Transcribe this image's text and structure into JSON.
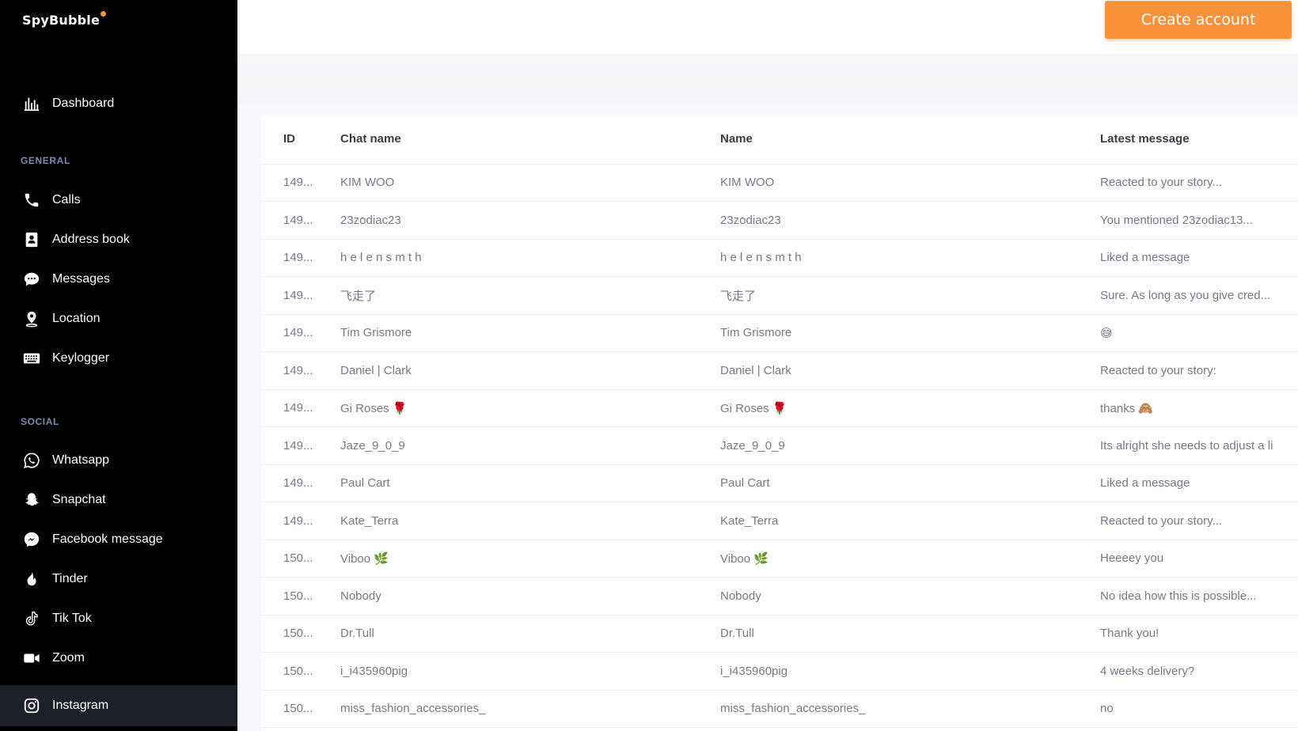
{
  "brand": {
    "name": "SpyBubble",
    "accent": "#f7923a"
  },
  "sidebar": {
    "dashboard": {
      "label": "Dashboard",
      "icon": "bar-chart-icon"
    },
    "general_label": "GENERAL",
    "general": [
      {
        "label": "Calls",
        "icon": "phone-icon"
      },
      {
        "label": "Address book",
        "icon": "address-book-icon"
      },
      {
        "label": "Messages",
        "icon": "message-bubble-icon"
      },
      {
        "label": "Location",
        "icon": "location-pin-icon"
      },
      {
        "label": "Keylogger",
        "icon": "keyboard-icon"
      }
    ],
    "social_label": "SOCIAL",
    "social": [
      {
        "label": "Whatsapp",
        "icon": "whatsapp-icon"
      },
      {
        "label": "Snapchat",
        "icon": "snapchat-ghost-icon"
      },
      {
        "label": "Facebook message",
        "icon": "messenger-icon"
      },
      {
        "label": "Tinder",
        "icon": "flame-icon"
      },
      {
        "label": "Tik Tok",
        "icon": "tiktok-icon"
      },
      {
        "label": "Zoom",
        "icon": "video-camera-icon"
      },
      {
        "label": "Instagram",
        "icon": "instagram-icon",
        "active": true
      }
    ]
  },
  "header": {
    "create_button": "Create account"
  },
  "table": {
    "columns": [
      "ID",
      "Chat name",
      "Name",
      "Latest message"
    ],
    "rows": [
      [
        "149...",
        "KIM WOO",
        "KIM WOO",
        "Reacted to your story..."
      ],
      [
        "149...",
        "23zodiac23",
        "23zodiac23",
        "You mentioned 23zodiac13..."
      ],
      [
        "149...",
        "h e l e n s m t h",
        "h e l e n s m t h",
        "Liked a message"
      ],
      [
        "149...",
        "飞走了",
        "飞走了",
        "Sure. As long as you give cred..."
      ],
      [
        "149...",
        "Tim Grismore",
        "Tim Grismore",
        "😅"
      ],
      [
        "149...",
        "Daniel | Clark",
        "Daniel | Clark",
        "Reacted to your story:"
      ],
      [
        "149...",
        "Gi Roses 🌹",
        "Gi Roses 🌹",
        "thanks 🙈"
      ],
      [
        "149...",
        "Jaze_9_0_9",
        "Jaze_9_0_9",
        "Its alright she needs to adjust a li"
      ],
      [
        "149...",
        "Paul Cart",
        "Paul Cart",
        "Liked a message"
      ],
      [
        "149...",
        "Kate_Terra",
        "Kate_Terra",
        "Reacted to your story..."
      ],
      [
        "150...",
        "Viboo 🌿",
        "Viboo 🌿",
        "Heeeey you"
      ],
      [
        "150...",
        "Nobody",
        "Nobody",
        "No idea how this is possible..."
      ],
      [
        "150...",
        "Dr.Tull",
        "Dr.Tull",
        "Thank you!"
      ],
      [
        "150...",
        "i_i435960pig",
        "i_i435960pig",
        "4 weeks delivery?"
      ],
      [
        "150...",
        "miss_fashion_accessories_",
        "miss_fashion_accessories_",
        "no"
      ]
    ]
  }
}
